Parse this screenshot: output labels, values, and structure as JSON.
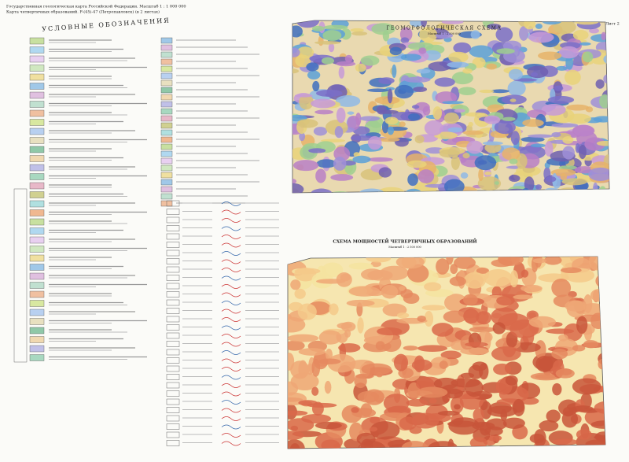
{
  "header": {
    "line1": "Государственная геологическая карта Российской Федерации. Масштаб 1 : 1 000 000",
    "line2": "Карта четвертичных образований. P-(45)-47 (Петропавловск) (в 2 листах)"
  },
  "legend": {
    "title": "УСЛОВНЫЕ ОБОЗНАЧЕНИЯ"
  },
  "sheet": "Лист 2",
  "geomorph_scheme": {
    "title": "ГЕОМОРФОЛОГИЧЕСКАЯ СХЕМА",
    "scale": "Масштаб 1 : 2 500 000"
  },
  "thickness_scheme": {
    "title": "СХЕМА МОЩНОСТЕЙ ЧЕТВЕРТИЧНЫХ ОБРАЗОВАНИЙ",
    "scale": "Масштаб 1 : 2 500 000"
  }
}
